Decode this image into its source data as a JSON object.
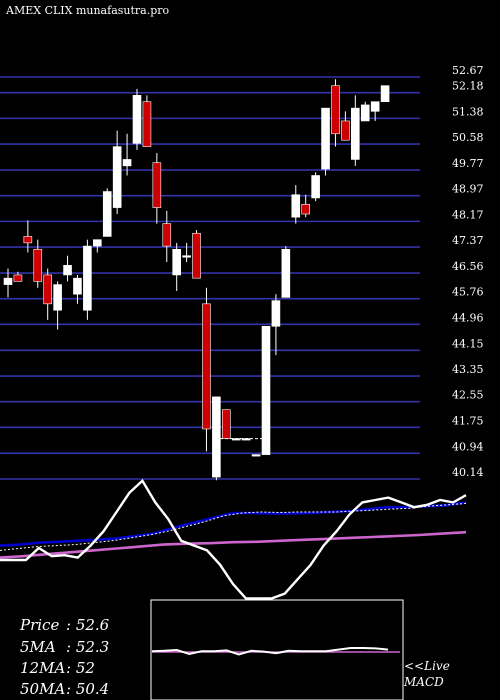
{
  "header": {
    "ticker_text": "AMEX  CLIX  munafasutra.pro"
  },
  "colors": {
    "background": "#000000",
    "grid": "#3333aa",
    "text": "#ffffff",
    "bull_candle": "#ffffff",
    "bear_candle": "#cc0000",
    "ma_short": "#0000cc",
    "ma_long": "#cc66cc",
    "ma_dotted": "#ffffff",
    "panel_border": "#ffffff"
  },
  "chart_data": [
    {
      "type": "candlestick",
      "title": "",
      "y_ticks": [
        52.67,
        52.18,
        51.38,
        50.58,
        49.77,
        48.97,
        48.17,
        47.37,
        46.56,
        45.76,
        44.96,
        44.15,
        43.35,
        42.55,
        41.75,
        40.94,
        40.14
      ],
      "ylim": [
        40.14,
        52.67
      ],
      "grid": true,
      "candles": [
        {
          "o": 46.2,
          "h": 46.7,
          "l": 45.8,
          "c": 46.4
        },
        {
          "o": 46.5,
          "h": 46.6,
          "l": 46.3,
          "c": 46.3
        },
        {
          "o": 47.7,
          "h": 48.2,
          "l": 47.2,
          "c": 47.5
        },
        {
          "o": 47.3,
          "h": 47.6,
          "l": 46.1,
          "c": 46.3
        },
        {
          "o": 46.5,
          "h": 46.7,
          "l": 45.1,
          "c": 45.6
        },
        {
          "o": 45.4,
          "h": 46.3,
          "l": 44.8,
          "c": 46.2
        },
        {
          "o": 46.5,
          "h": 47.1,
          "l": 46.3,
          "c": 46.8
        },
        {
          "o": 45.9,
          "h": 46.5,
          "l": 45.6,
          "c": 46.4
        },
        {
          "o": 45.4,
          "h": 47.6,
          "l": 45.1,
          "c": 47.4
        },
        {
          "o": 47.4,
          "h": 47.6,
          "l": 47.2,
          "c": 47.6
        },
        {
          "o": 47.7,
          "h": 49.2,
          "l": 47.7,
          "c": 49.1
        },
        {
          "o": 48.6,
          "h": 51.0,
          "l": 48.4,
          "c": 50.5
        },
        {
          "o": 49.9,
          "h": 50.9,
          "l": 49.6,
          "c": 50.1
        },
        {
          "o": 50.6,
          "h": 52.3,
          "l": 50.4,
          "c": 52.1
        },
        {
          "o": 51.9,
          "h": 52.1,
          "l": 50.5,
          "c": 50.5
        },
        {
          "o": 50.0,
          "h": 50.3,
          "l": 48.1,
          "c": 48.6
        },
        {
          "o": 48.1,
          "h": 48.5,
          "l": 46.9,
          "c": 47.4
        },
        {
          "o": 46.5,
          "h": 47.5,
          "l": 46.0,
          "c": 47.3
        },
        {
          "o": 47.1,
          "h": 47.5,
          "l": 46.9,
          "c": 47.1
        },
        {
          "o": 47.8,
          "h": 47.9,
          "l": 46.4,
          "c": 46.4
        },
        {
          "o": 45.6,
          "h": 46.1,
          "l": 41.0,
          "c": 41.7
        },
        {
          "o": 40.2,
          "h": 42.7,
          "l": 40.1,
          "c": 42.7
        },
        {
          "o": 42.3,
          "h": 42.3,
          "l": 41.4,
          "c": 41.4
        },
        {
          "o": 41.4,
          "h": 41.4,
          "l": 41.4,
          "c": 41.4
        },
        {
          "o": 41.4,
          "h": 41.4,
          "l": 41.4,
          "c": 41.4
        },
        {
          "o": 40.9,
          "h": 40.9,
          "l": 40.9,
          "c": 40.9
        },
        {
          "o": 40.9,
          "h": 44.9,
          "l": 40.9,
          "c": 44.9
        },
        {
          "o": 44.9,
          "h": 45.9,
          "l": 44.0,
          "c": 45.7
        },
        {
          "o": 45.8,
          "h": 47.4,
          "l": 45.8,
          "c": 47.3
        },
        {
          "o": 48.3,
          "h": 49.3,
          "l": 48.1,
          "c": 49.0
        },
        {
          "o": 48.7,
          "h": 49.0,
          "l": 48.3,
          "c": 48.4
        },
        {
          "o": 48.9,
          "h": 49.7,
          "l": 48.8,
          "c": 49.6
        },
        {
          "o": 49.8,
          "h": 51.7,
          "l": 49.6,
          "c": 51.7
        },
        {
          "o": 52.4,
          "h": 52.6,
          "l": 50.5,
          "c": 50.9
        },
        {
          "o": 51.3,
          "h": 51.6,
          "l": 50.7,
          "c": 50.7
        },
        {
          "o": 50.1,
          "h": 52.1,
          "l": 49.9,
          "c": 51.7
        },
        {
          "o": 51.3,
          "h": 51.9,
          "l": 51.3,
          "c": 51.8
        },
        {
          "o": 51.6,
          "h": 51.9,
          "l": 51.3,
          "c": 51.9
        },
        {
          "o": 51.9,
          "h": 52.4,
          "l": 51.9,
          "c": 52.4
        }
      ]
    },
    {
      "type": "line",
      "title": "",
      "series": [
        {
          "color": "#0000cc",
          "values": [
            0.3,
            0.32,
            0.36,
            0.38,
            0.4,
            0.42,
            0.45,
            0.5,
            0.56,
            0.68,
            0.78,
            0.88,
            0.98,
            0.98,
            0.97,
            0.97,
            0.98,
            1.0,
            1.02,
            1.06,
            1.1,
            1.1,
            1.12,
            1.14,
            1.2
          ]
        },
        {
          "color": "#cc66cc",
          "values": [
            0.05,
            0.08,
            0.12,
            0.16,
            0.2,
            0.24,
            0.28,
            0.32,
            0.34,
            0.35,
            0.37,
            0.38,
            0.4,
            0.42,
            0.44,
            0.46,
            0.48,
            0.5,
            0.52,
            0.55,
            0.58
          ]
        },
        {
          "color": "#ffffff",
          "dotted": true,
          "values": [
            0.2,
            0.24,
            0.28,
            0.3,
            0.32,
            0.36,
            0.4,
            0.46,
            0.52,
            0.6,
            0.7,
            0.8,
            0.92,
            0.98,
            1.0,
            0.99,
            1.0,
            1.0,
            1.0,
            1.02,
            1.04,
            1.06,
            1.08,
            1.12,
            1.15,
            1.18
          ]
        },
        {
          "color": "#ffffff",
          "values": [
            0.0,
            0.0,
            0.0,
            0.25,
            0.08,
            0.1,
            0.05,
            0.3,
            0.6,
            1.0,
            1.4,
            1.65,
            1.2,
            0.85,
            0.4,
            0.3,
            0.2,
            -0.1,
            -0.5,
            -0.8,
            -0.8,
            -0.8,
            -0.7,
            -0.4,
            -0.1,
            0.3,
            0.6,
            0.95,
            1.2,
            1.25,
            1.3,
            1.2,
            1.1,
            1.15,
            1.25,
            1.2,
            1.35
          ]
        }
      ]
    },
    {
      "type": "line",
      "title": "",
      "baseline_visible": true,
      "values": [
        0.02,
        0.03,
        0.05,
        -0.05,
        0.02,
        0.02,
        0.04,
        -0.06,
        0.03,
        0.01,
        -0.03,
        0.03,
        0.02,
        0.02,
        0.02,
        0.06,
        0.1,
        0.1,
        0.09,
        0.06
      ]
    }
  ],
  "legend": {
    "price_label": "Price",
    "price_value": ": 52.6",
    "ma5_label": "5MA",
    "ma5_value": ": 52.3",
    "ma12_label": "12MA",
    "ma12_value": ": 52",
    "ma50_label": "50MA",
    "ma50_value": ": 50.4"
  },
  "macd": {
    "live_text": "<<Live",
    "title_text": "MACD"
  }
}
